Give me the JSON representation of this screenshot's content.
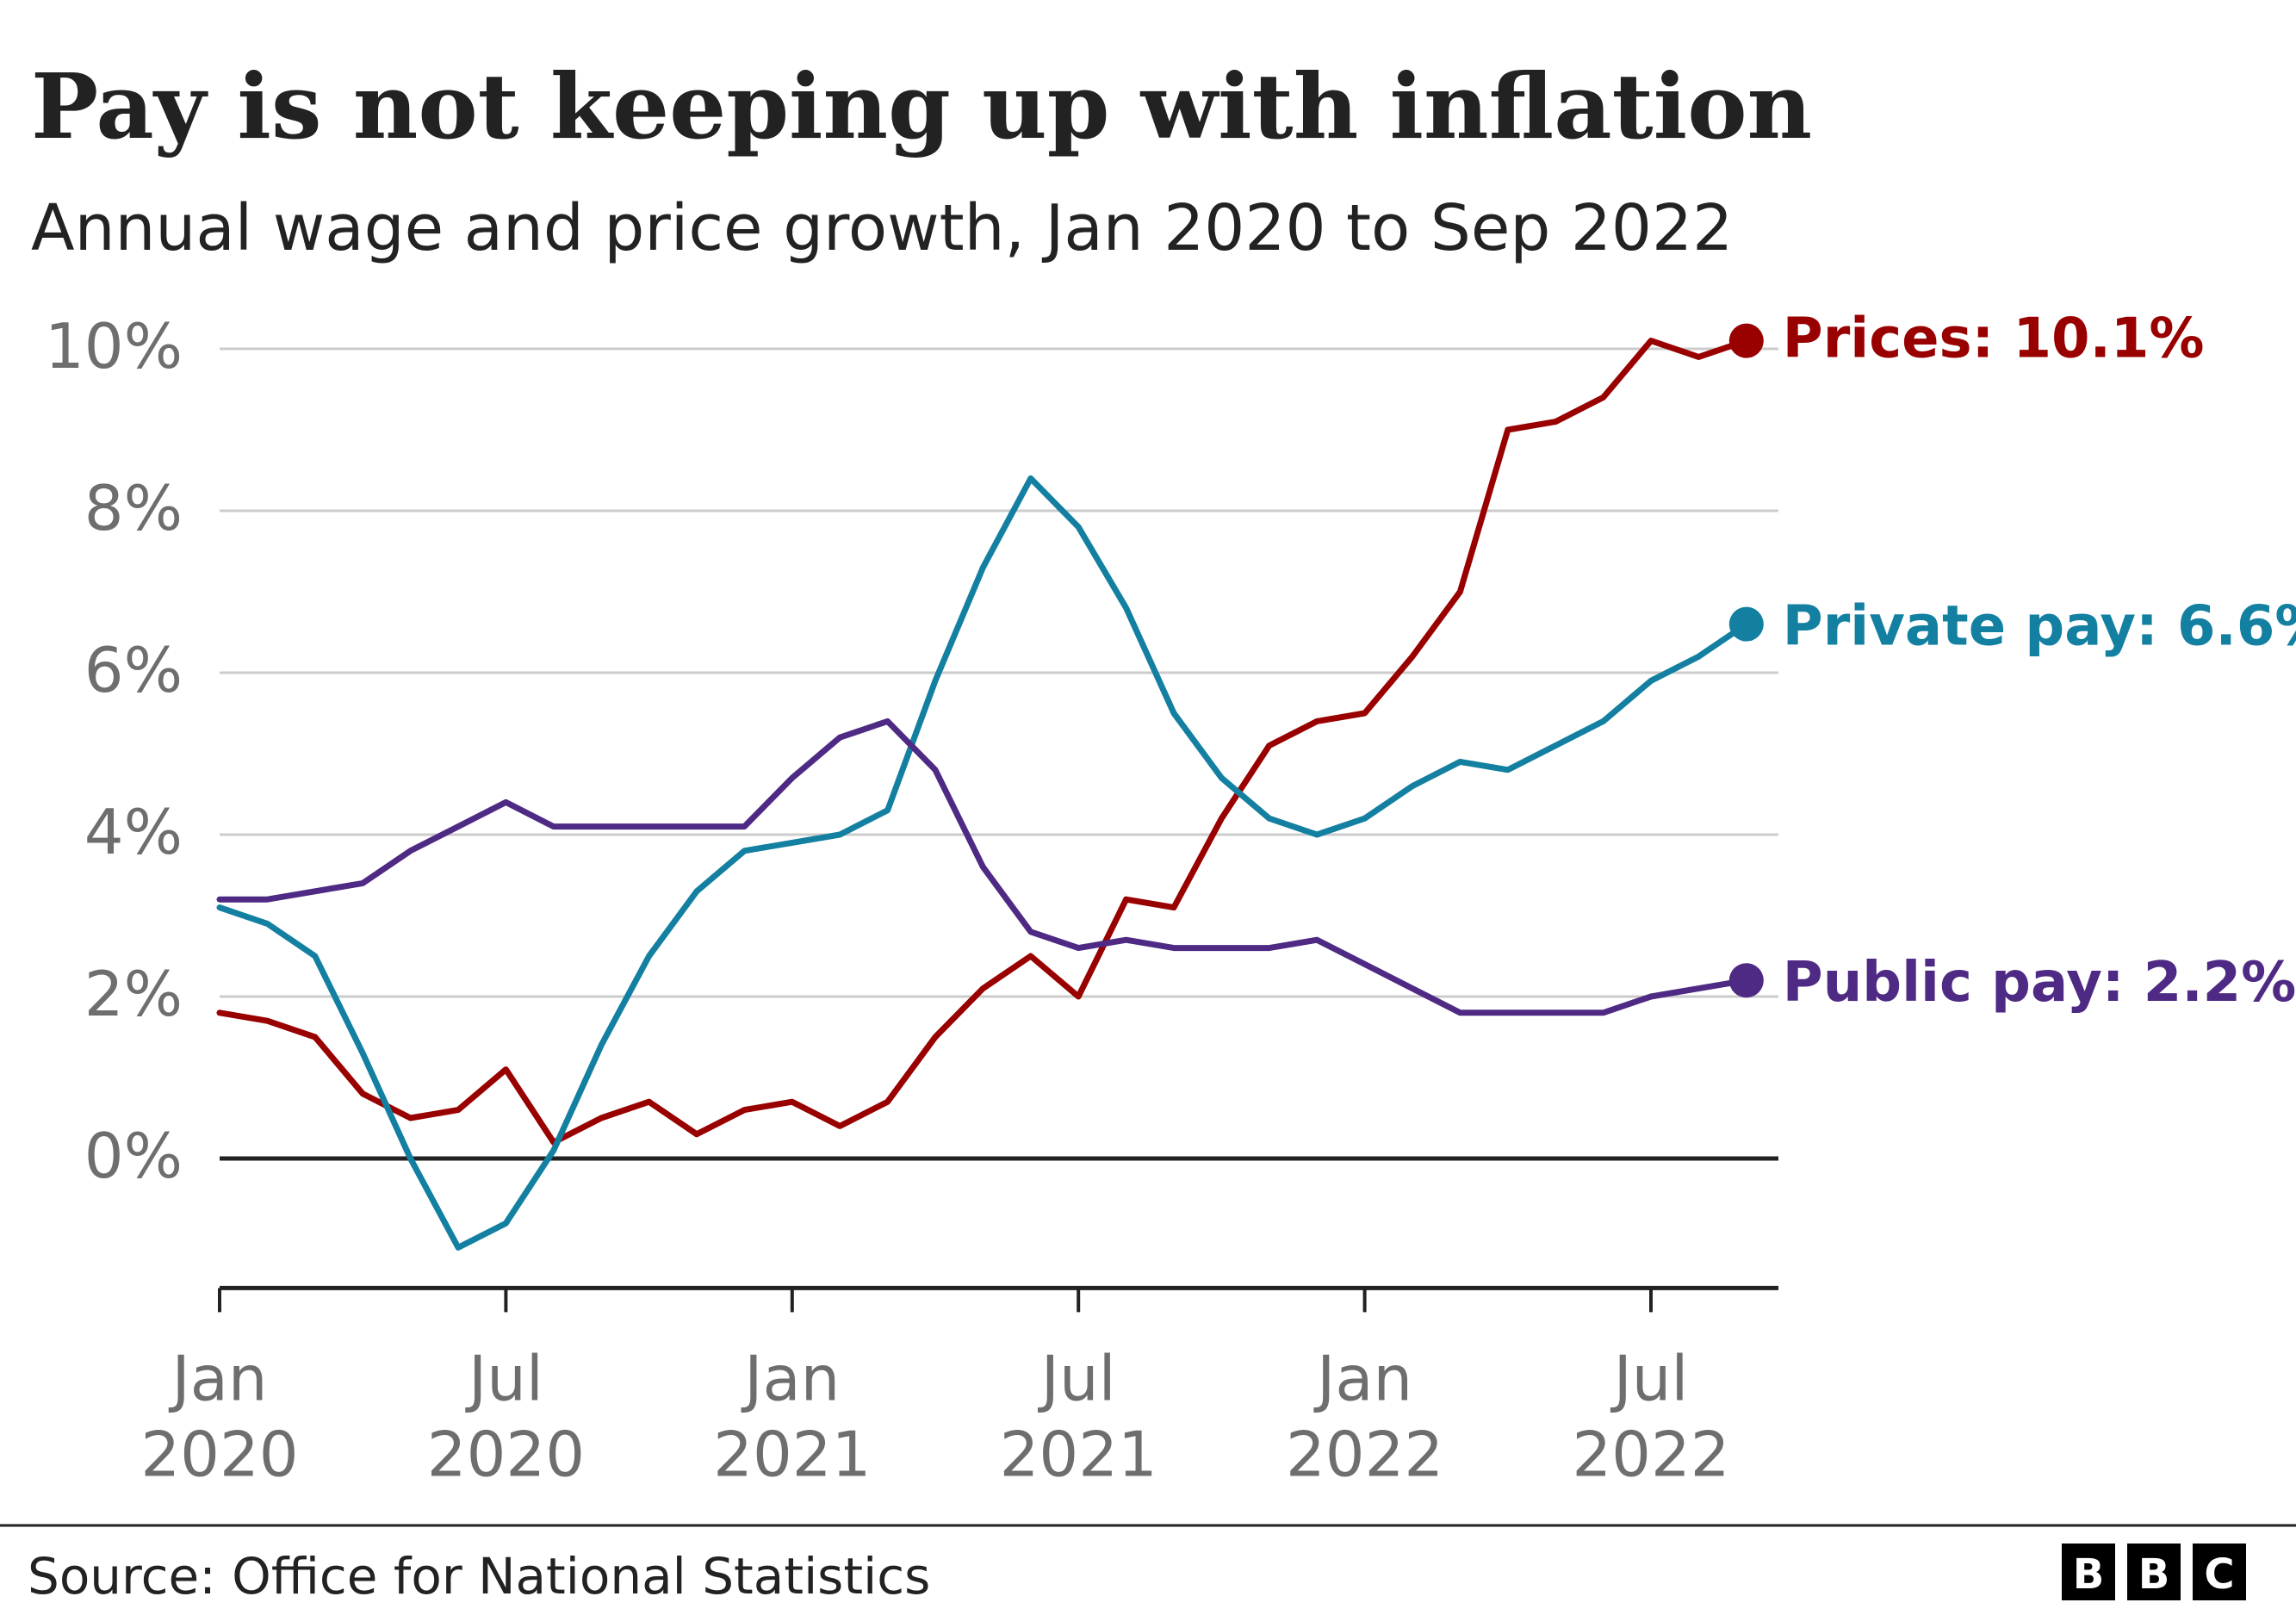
{
  "header": {
    "title": "Pay is not keeping up with inflation",
    "subtitle": "Annual wage and price growth, Jan 2020 to Sep 2022"
  },
  "footer": {
    "source": "Source: Office for National Statistics",
    "logo_letters": [
      "B",
      "B",
      "C"
    ]
  },
  "chart_data": {
    "type": "line",
    "title": "Pay is not keeping up with inflation",
    "subtitle": "Annual wage and price growth, Jan 2020 to Sep 2022",
    "xlabel": "",
    "ylabel": "",
    "ylim": [
      -1.6,
      10
    ],
    "yticks": [
      {
        "value": 0,
        "label": "0%"
      },
      {
        "value": 2,
        "label": "2%"
      },
      {
        "value": 4,
        "label": "4%"
      },
      {
        "value": 6,
        "label": "6%"
      },
      {
        "value": 8,
        "label": "8%"
      },
      {
        "value": 10,
        "label": "10%"
      }
    ],
    "xticks": [
      {
        "index": 0,
        "line1": "Jan",
        "line2": "2020"
      },
      {
        "index": 6,
        "line1": "Jul",
        "line2": "2020"
      },
      {
        "index": 12,
        "line1": "Jan",
        "line2": "2021"
      },
      {
        "index": 18,
        "line1": "Jul",
        "line2": "2021"
      },
      {
        "index": 24,
        "line1": "Jan",
        "line2": "2022"
      },
      {
        "index": 30,
        "line1": "Jul",
        "line2": "2022"
      }
    ],
    "x": [
      "2020-01",
      "2020-02",
      "2020-03",
      "2020-04",
      "2020-05",
      "2020-06",
      "2020-07",
      "2020-08",
      "2020-09",
      "2020-10",
      "2020-11",
      "2020-12",
      "2021-01",
      "2021-02",
      "2021-03",
      "2021-04",
      "2021-05",
      "2021-06",
      "2021-07",
      "2021-08",
      "2021-09",
      "2021-10",
      "2021-11",
      "2021-12",
      "2022-01",
      "2022-02",
      "2022-03",
      "2022-04",
      "2022-05",
      "2022-06",
      "2022-07",
      "2022-08",
      "2022-09"
    ],
    "grid": true,
    "legend": "direct labels at line ends",
    "series": [
      {
        "name": "Prices",
        "end_label": "Prices: 10.1%",
        "color": "#990000",
        "values": [
          1.8,
          1.7,
          1.5,
          0.8,
          0.5,
          0.6,
          1.1,
          0.2,
          0.5,
          0.7,
          0.3,
          0.6,
          0.7,
          0.4,
          0.7,
          1.5,
          2.1,
          2.5,
          2.0,
          3.2,
          3.1,
          4.2,
          5.1,
          5.4,
          5.5,
          6.2,
          7.0,
          9.0,
          9.1,
          9.4,
          10.1,
          9.9,
          10.1
        ]
      },
      {
        "name": "Private pay",
        "end_label": "Private pay: 6.6%",
        "color": "#1380A1",
        "values": [
          3.1,
          2.9,
          2.5,
          1.3,
          0.0,
          -1.1,
          -0.8,
          0.1,
          1.4,
          2.5,
          3.3,
          3.8,
          3.9,
          4.0,
          4.3,
          5.9,
          7.3,
          8.4,
          7.8,
          6.8,
          5.5,
          4.7,
          4.2,
          4.0,
          4.2,
          4.6,
          4.9,
          4.8,
          5.1,
          5.4,
          5.9,
          6.2,
          6.6
        ]
      },
      {
        "name": "Public pay",
        "end_label": "Public pay: 2.2%",
        "color": "#4E2A84",
        "values": [
          3.2,
          3.2,
          3.3,
          3.4,
          3.8,
          4.1,
          4.4,
          4.1,
          4.1,
          4.1,
          4.1,
          4.1,
          4.7,
          5.2,
          5.4,
          4.8,
          3.6,
          2.8,
          2.6,
          2.7,
          2.6,
          2.6,
          2.6,
          2.7,
          2.4,
          2.1,
          1.8,
          1.8,
          1.8,
          1.8,
          2.0,
          2.1,
          2.2
        ]
      }
    ]
  }
}
